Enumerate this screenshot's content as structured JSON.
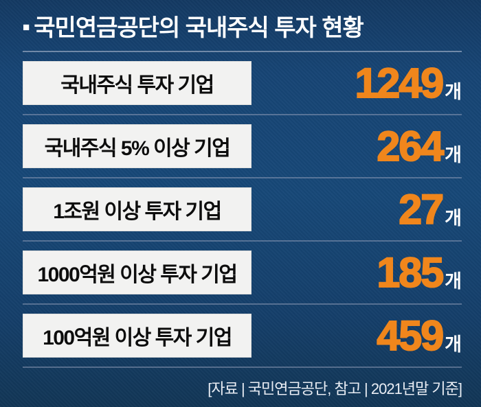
{
  "title": {
    "bullet": "■",
    "text": "국민연금공단의 국내주식 투자 현황"
  },
  "rows": [
    {
      "label": "국내주식 투자 기업",
      "value": "1249",
      "unit": "개"
    },
    {
      "label": "국내주식 5% 이상 기업",
      "value": "264",
      "unit": "개"
    },
    {
      "label": "1조원 이상 투자 기업",
      "value": "27",
      "unit": "개"
    },
    {
      "label": "1000억원 이상 투자 기업",
      "value": "185",
      "unit": "개"
    },
    {
      "label": "100억원 이상 투자 기업",
      "value": "459",
      "unit": "개"
    }
  ],
  "footer": "[자료 | 국민연금공단, 참고 | 2021년말 기준]",
  "colors": {
    "background": "#17477A",
    "accent_orange": "#F0861C",
    "label_box": "#F2F2F1",
    "divider": "#96A0B9",
    "title_text": "#FFFFFF",
    "label_text": "#0D0D0D"
  },
  "chart_data": {
    "type": "table",
    "title": "국민연금공단의 국내주식 투자 현황",
    "categories": [
      "국내주식 투자 기업",
      "국내주식 5% 이상 기업",
      "1조원 이상 투자 기업",
      "1000억원 이상 투자 기업",
      "100억원 이상 투자 기업"
    ],
    "values": [
      1249,
      264,
      27,
      185,
      459
    ],
    "unit": "개",
    "source_note": "[자료 | 국민연금공단, 참고 | 2021년말 기준]",
    "legend_position": "none",
    "grid": false
  }
}
